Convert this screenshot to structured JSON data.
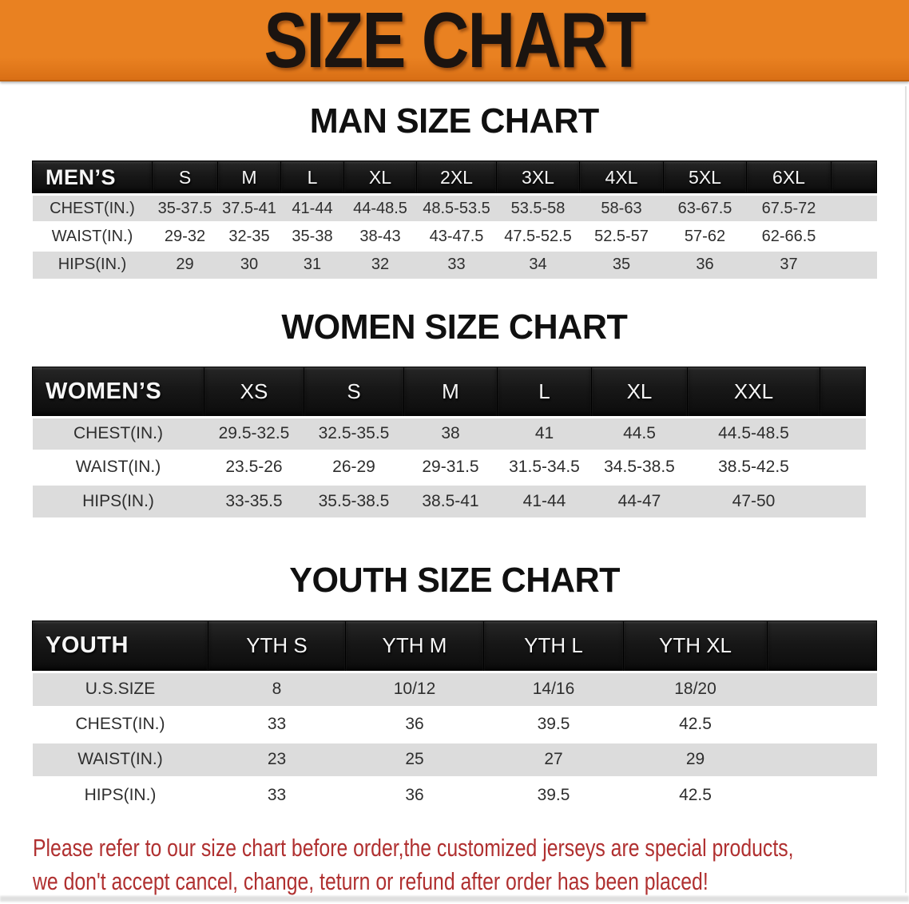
{
  "banner": {
    "title": "SIZE CHART",
    "bg_color": "#E98121",
    "bg_color_dark": "#D96F15",
    "text_color": "#1B1410"
  },
  "sections": [
    {
      "title": "MAN SIZE CHART",
      "group_label": "MEN’S",
      "columns": [
        "S",
        "M",
        "L",
        "XL",
        "2XL",
        "3XL",
        "4XL",
        "5XL",
        "6XL"
      ],
      "rows": [
        {
          "label": "CHEST(IN.)",
          "values": [
            "35-37.5",
            "37.5-41",
            "41-44",
            "44-48.5",
            "48.5-53.5",
            "53.5-58",
            "58-63",
            "63-67.5",
            "67.5-72"
          ]
        },
        {
          "label": "WAIST(IN.)",
          "values": [
            "29-32",
            "32-35",
            "35-38",
            "38-43",
            "43-47.5",
            "47.5-52.5",
            "52.5-57",
            "57-62",
            "62-66.5"
          ]
        },
        {
          "label": "HIPS(IN.)",
          "values": [
            "29",
            "30",
            "31",
            "32",
            "33",
            "34",
            "35",
            "36",
            "37"
          ]
        }
      ]
    },
    {
      "title": "WOMEN SIZE CHART",
      "group_label": "WOMEN’S",
      "columns": [
        "XS",
        "S",
        "M",
        "L",
        "XL",
        "XXL"
      ],
      "rows": [
        {
          "label": "CHEST(IN.)",
          "values": [
            "29.5-32.5",
            "32.5-35.5",
            "38",
            "41",
            "44.5",
            "44.5-48.5"
          ]
        },
        {
          "label": "WAIST(IN.)",
          "values": [
            "23.5-26",
            "26-29",
            "29-31.5",
            "31.5-34.5",
            "34.5-38.5",
            "38.5-42.5"
          ]
        },
        {
          "label": "HIPS(IN.)",
          "values": [
            "33-35.5",
            "35.5-38.5",
            "38.5-41",
            "41-44",
            "44-47",
            "47-50"
          ]
        }
      ]
    },
    {
      "title": "YOUTH SIZE CHART",
      "group_label": "YOUTH",
      "columns": [
        "YTH S",
        "YTH M",
        "YTH L",
        "YTH XL"
      ],
      "rows": [
        {
          "label": "U.S.SIZE",
          "values": [
            "8",
            "10/12",
            "14/16",
            "18/20"
          ]
        },
        {
          "label": "CHEST(IN.)",
          "values": [
            "33",
            "36",
            "39.5",
            "42.5"
          ]
        },
        {
          "label": "WAIST(IN.)",
          "values": [
            "23",
            "25",
            "27",
            "29"
          ]
        },
        {
          "label": "HIPS(IN.)",
          "values": [
            "33",
            "36",
            "39.5",
            "42.5"
          ]
        }
      ]
    }
  ],
  "footer": {
    "line1": "Please refer to our size chart before order,the customized jerseys are special products,",
    "line2": "we don't accept cancel, change, teturn or refund after order has been placed!",
    "text_color": "#B03030"
  },
  "colors": {
    "header_bar": "#171717",
    "shaded_row": "#DCDCDC",
    "header_text": "#F6F6F6",
    "body_text": "#2E2E2E"
  }
}
